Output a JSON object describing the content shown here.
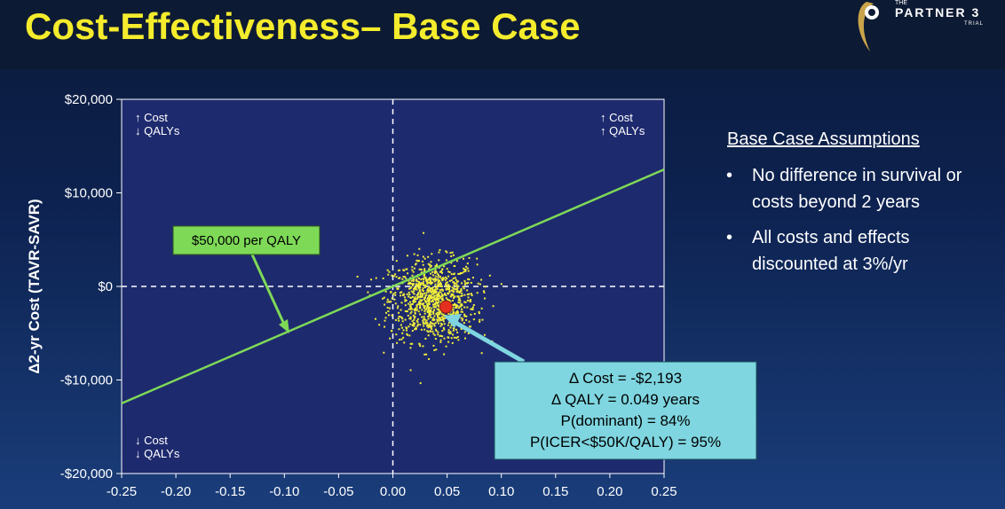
{
  "header": {
    "title": "Cost-Effectiveness– Base Case",
    "logo": {
      "the": "THE",
      "partner": "PARTNER 3",
      "trial": "TRIAL"
    }
  },
  "colors": {
    "title": "#f4ec2c",
    "plot_bg": "#1e2a6e",
    "points": "#f2ee3a",
    "point_estimate": "#e53020",
    "threshold_line": "#7ed957",
    "annotation_box": "#7fd6e0",
    "annotation_arrow": "#7fd6e0"
  },
  "chart_data": {
    "type": "scatter",
    "title": "",
    "xlabel": "",
    "ylabel": "Δ2-yr Cost (TAVR-SAVR)",
    "xlim": [
      -0.25,
      0.25
    ],
    "ylim": [
      -20000,
      20000
    ],
    "x_ticks": [
      "-0.25",
      "-0.20",
      "-0.15",
      "-0.10",
      "-0.05",
      "0.00",
      "0.05",
      "0.10",
      "0.15",
      "0.20",
      "0.25"
    ],
    "y_ticks": [
      "$20,000",
      "$10,000",
      "$0",
      "-$10,000",
      "-$20,000"
    ],
    "y_tick_values": [
      20000,
      10000,
      0,
      -10000,
      -20000
    ],
    "x_tick_values": [
      -0.25,
      -0.2,
      -0.15,
      -0.1,
      -0.05,
      0,
      0.05,
      0.1,
      0.15,
      0.2,
      0.25
    ],
    "grid": false,
    "reference_lines": {
      "x": 0,
      "y": 0,
      "style": "dashed"
    },
    "point_cloud": {
      "center": [
        0.049,
        -2193
      ],
      "sd": [
        0.02,
        2200
      ],
      "count": 1000
    },
    "point_estimate": {
      "x": 0.049,
      "y": -2193
    },
    "threshold_line": {
      "slope_per_qaly": 50000,
      "label": "$50,000 per QALY"
    },
    "quadrant_labels": {
      "top_left": [
        "↑ Cost",
        "↓ QALYs"
      ],
      "top_right": [
        "↑ Cost",
        "↑ QALYs"
      ],
      "bottom_left": [
        "↓ Cost",
        "↓ QALYs"
      ]
    },
    "annotation": [
      "Δ Cost = -$2,193",
      "Δ QALY = 0.049 years",
      "P(dominant) = 84%",
      "P(ICER<$50K/QALY) = 95%"
    ]
  },
  "side_panel": {
    "title": "Base Case Assumptions",
    "bullets": [
      "No difference in survival or costs beyond 2 years",
      "All costs and effects discounted at 3%/yr"
    ]
  }
}
